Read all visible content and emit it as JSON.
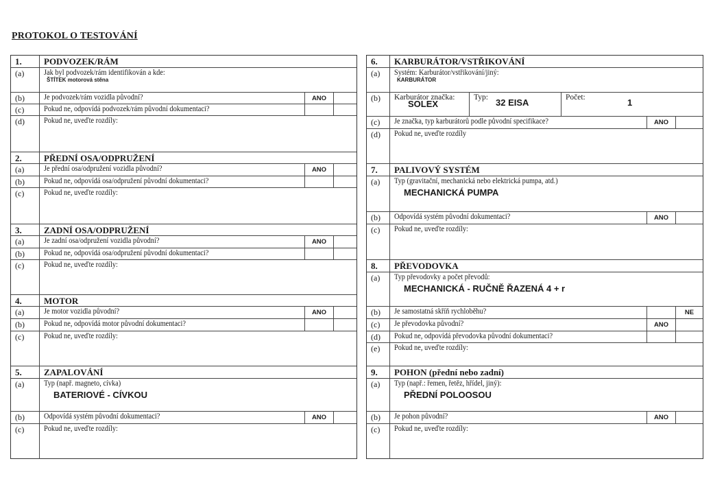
{
  "title": "PROTOKOL O TESTOVÁNÍ",
  "left": [
    {
      "kind": "sec",
      "num": "1.",
      "text": "PODVOZEK/RÁM"
    },
    {
      "kind": "text",
      "num": "(a)",
      "text": "Jak byl podvozek/rám identifikován a kde:",
      "value": "ŠTÍTEK    motorová stěna",
      "small": true
    },
    {
      "kind": "q",
      "num": "(b)",
      "text": "Je podvozek/rám vozidla původní?",
      "yes": "ANO",
      "no": ""
    },
    {
      "kind": "q",
      "num": "(c)",
      "text": "Pokud ne, odpovídá podvozek/rám původní dokumentaci?",
      "yes": "",
      "no": ""
    },
    {
      "kind": "text",
      "num": "(d)",
      "text": "Pokud ne, uveďte rozdíly:",
      "value": ""
    },
    {
      "kind": "sec",
      "num": "2.",
      "text": "PŘEDNÍ OSA/ODPRUŽENÍ"
    },
    {
      "kind": "q",
      "num": "(a)",
      "text": "Je přední osa/odpružení vozidla původní?",
      "yes": "ANO",
      "no": ""
    },
    {
      "kind": "q",
      "num": "(b)",
      "text": "Pokud ne, odpovídá osa/odpružení původní dokumentaci?",
      "yes": "",
      "no": ""
    },
    {
      "kind": "text",
      "num": "(c)",
      "text": "Pokud ne, uveďte rozdíly:",
      "value": ""
    },
    {
      "kind": "sec",
      "num": "3.",
      "text": "ZADNÍ OSA/ODPRUŽENÍ"
    },
    {
      "kind": "q",
      "num": "(a)",
      "text": "Je zadní osa/odpružení vozidla původní?",
      "yes": "ANO",
      "no": ""
    },
    {
      "kind": "q",
      "num": "(b)",
      "text": "Pokud ne, odpovídá osa/odpružení původní dokumentaci?",
      "yes": "",
      "no": ""
    },
    {
      "kind": "text",
      "num": "(c)",
      "text": "Pokud ne, uveďte rozdíly:",
      "value": ""
    },
    {
      "kind": "sec",
      "num": "4.",
      "text": "MOTOR"
    },
    {
      "kind": "q",
      "num": "(a)",
      "text": "Je motor vozidla původní?",
      "yes": "ANO",
      "no": ""
    },
    {
      "kind": "q",
      "num": "(b)",
      "text": "Pokud ne, odpovídá motor původní dokumentaci?",
      "yes": "",
      "no": ""
    },
    {
      "kind": "text",
      "num": "(c)",
      "text": "Pokud ne, uveďte rozdíly:",
      "value": ""
    },
    {
      "kind": "sec",
      "num": "5.",
      "text": "ZAPALOVÁNÍ"
    },
    {
      "kind": "text",
      "num": "(a)",
      "text": "Typ (např. magneto, cívka)",
      "value": "BATERIOVÉ - CÍVKOU"
    },
    {
      "kind": "q",
      "num": "(b)",
      "text": "Odpovídá systém původní dokumentaci?",
      "yes": "ANO",
      "no": ""
    },
    {
      "kind": "text",
      "num": "(c)",
      "text": "Pokud ne, uveďte rozdíly:",
      "value": ""
    }
  ],
  "right": [
    {
      "kind": "sec",
      "num": "6.",
      "text": "KARBURÁTOR/VSTŘIKOVÁNÍ"
    },
    {
      "kind": "text",
      "num": "(a)",
      "text": "Systém: Karburátor/vstřikování/jiný:",
      "value": "KARBURÁTOR",
      "small": true
    },
    {
      "kind": "carb",
      "num": "(b)",
      "brand_label": "Karburátor značka:",
      "brand": "SOLEX",
      "type_label": "Typ:",
      "type": "32 EISA",
      "count_label": "Počet:",
      "count": "1"
    },
    {
      "kind": "q",
      "num": "(c)",
      "text": "Je značka, typ karburátorů podle původní specifikace?",
      "yes": "ANO",
      "no": ""
    },
    {
      "kind": "text",
      "num": "(d)",
      "text": "Pokud ne, uveďte rozdíly",
      "value": ""
    },
    {
      "kind": "sec",
      "num": "7.",
      "text": "PALIVOVÝ SYSTÉM"
    },
    {
      "kind": "text",
      "num": "(a)",
      "text": "Typ (gravitační, mechanická nebo elektrická pumpa, atd.)",
      "value": "MECHANICKÁ PUMPA"
    },
    {
      "kind": "q",
      "num": "(b)",
      "text": "Odpovídá systém původní dokumentaci?",
      "yes": "ANO",
      "no": ""
    },
    {
      "kind": "text",
      "num": "(c)",
      "text": "Pokud ne, uveďte rozdíly:",
      "value": ""
    },
    {
      "kind": "sec",
      "num": "8.",
      "text": "PŘEVODOVKA"
    },
    {
      "kind": "text",
      "num": "(a)",
      "text": "Typ převodovky a počet převodů:",
      "value": "MECHANICKÁ - RUČNĚ ŘAZENÁ     4 + r"
    },
    {
      "kind": "q",
      "num": "(b)",
      "text": "Je samostatná skříň rychloběhu?",
      "yes": "",
      "no": "NE"
    },
    {
      "kind": "q",
      "num": "(c)",
      "text": "Je převodovka původní?",
      "yes": "ANO",
      "no": ""
    },
    {
      "kind": "q",
      "num": "(d)",
      "text": "Pokud ne, odpovídá převodovka původní dokumentaci?",
      "yes": "",
      "no": ""
    },
    {
      "kind": "text",
      "num": "(e)",
      "text": "Pokud ne, uveďte rozdíly:",
      "value": ""
    },
    {
      "kind": "sec",
      "num": "9.",
      "text": "POHON (přední nebo zadní)"
    },
    {
      "kind": "text",
      "num": "(a)",
      "text": "Typ (např.: řemen, řetěz, hřídel, jiný):",
      "value": "PŘEDNÍ    POLOOSOU"
    },
    {
      "kind": "q",
      "num": "(b)",
      "text": "Je pohon původní?",
      "yes": "ANO",
      "no": ""
    },
    {
      "kind": "text",
      "num": "(c)",
      "text": "Pokud ne, uveďte rozdíly:",
      "value": ""
    }
  ]
}
